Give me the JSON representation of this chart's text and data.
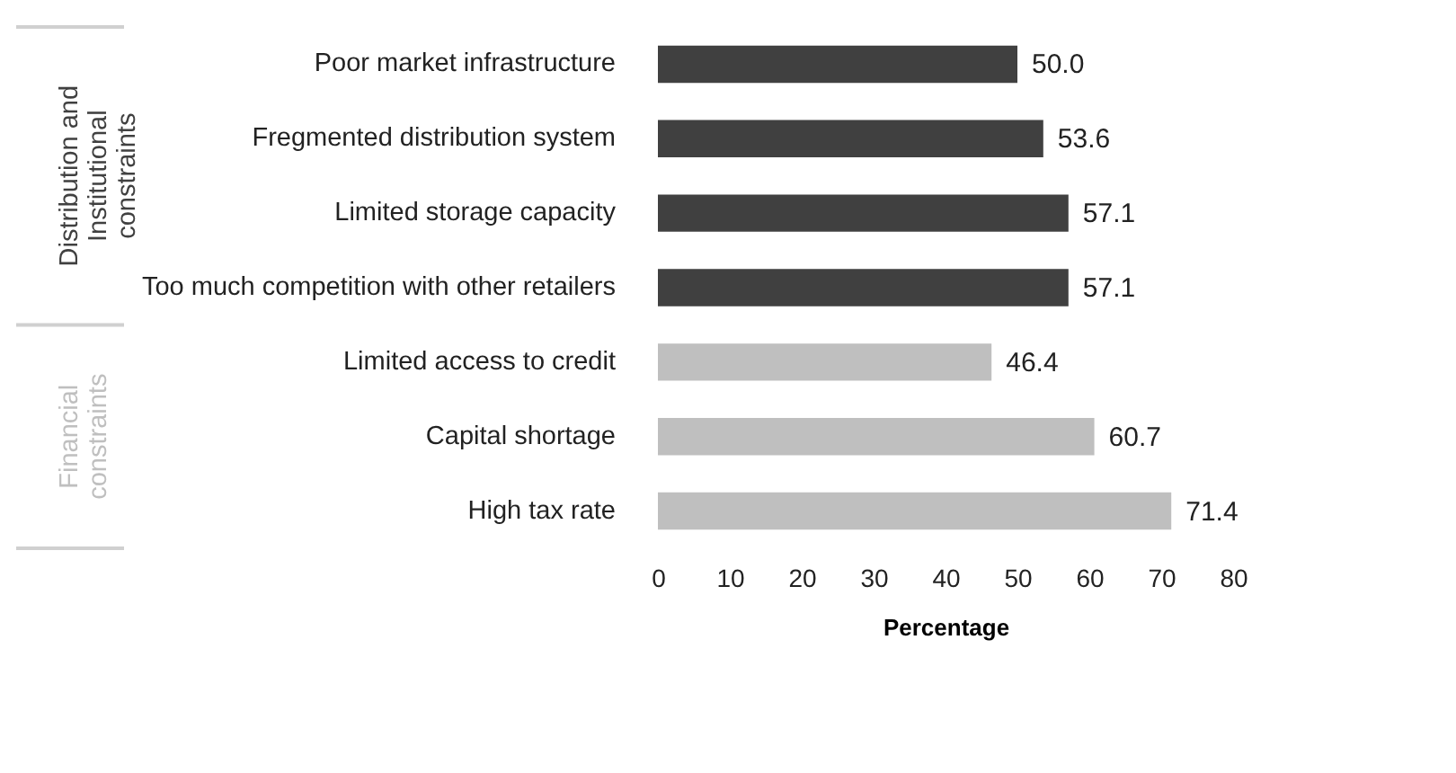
{
  "chart_data": {
    "type": "bar",
    "orientation": "horizontal",
    "xlabel": "Percentage",
    "categories": [
      "Poor market infrastructure",
      "Fregmented distribution system",
      "Limited storage capacity",
      "Too much competition with other retailers",
      "Limited access to credit",
      "Capital shortage",
      "High tax rate"
    ],
    "series": [
      {
        "name": "Distribution and Institutional constraints",
        "color": "#404040",
        "values": [
          50.0,
          53.6,
          57.1,
          57.1,
          null,
          null,
          null
        ],
        "value_labels": [
          "50.0",
          "53.6",
          "57.1",
          "57.1",
          null,
          null,
          null
        ]
      },
      {
        "name": "Financial constraints",
        "color": "#bfbfbf",
        "values": [
          null,
          null,
          null,
          null,
          46.4,
          60.7,
          71.4
        ],
        "value_labels": [
          null,
          null,
          null,
          null,
          "46.4",
          "60.7",
          "71.4"
        ]
      }
    ],
    "xlim": [
      0,
      80
    ],
    "xticks": [
      0,
      10,
      20,
      30,
      40,
      50,
      60,
      70,
      80
    ],
    "grid": false
  }
}
